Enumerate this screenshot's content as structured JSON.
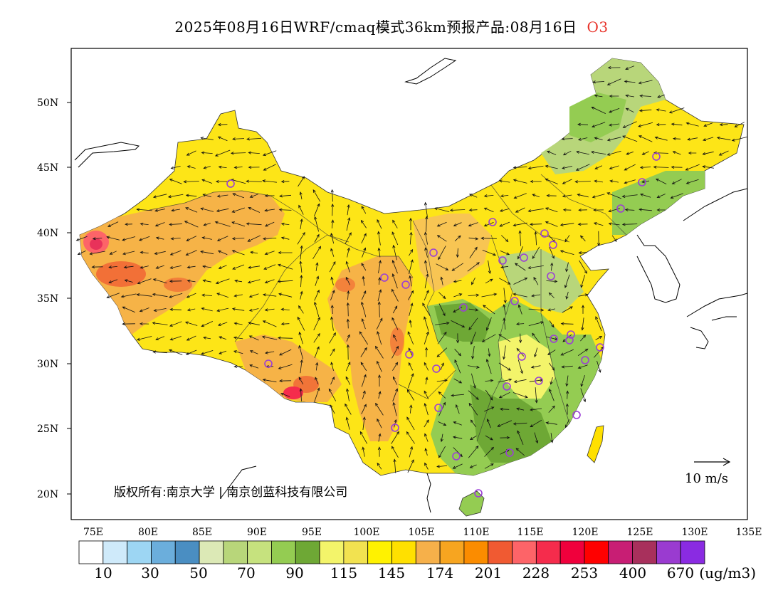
{
  "title": {
    "main": "2025年08月16日WRF/cmaq模式36km预报产品:08月16日",
    "pollutant": "O3"
  },
  "map": {
    "lat_ticks": [
      "20N",
      "25N",
      "30N",
      "35N",
      "40N",
      "45N",
      "50N"
    ],
    "lon_ticks": [
      "75E",
      "80E",
      "85E",
      "90E",
      "95E",
      "100E",
      "105E",
      "110E",
      "115E",
      "120E",
      "125E",
      "130E",
      "135E"
    ],
    "copyright": "版权所有:南京大学 | 南京创蓝科技有限公司",
    "wind_reference": "10 m/s",
    "colors": {
      "dominant_west": "#f6a637",
      "dominant_center": "#ffe600",
      "dominant_east": "#8ac44b",
      "peak": "#e8325a",
      "station_marker": "#9b3fd6"
    }
  },
  "colorbar": {
    "unit": "(ug/m3)",
    "labels": [
      "10",
      "30",
      "50",
      "70",
      "90",
      "115",
      "145",
      "174",
      "201",
      "228",
      "253",
      "400",
      "670"
    ],
    "colors": [
      "#ffffff",
      "#cfeafa",
      "#9dd6f3",
      "#6baedc",
      "#4a8ec2",
      "#dce9b6",
      "#b8d67a",
      "#c6e27e",
      "#94cc52",
      "#6ea835",
      "#f3f46a",
      "#f2e250",
      "#fff200",
      "#ffe000",
      "#f6b04a",
      "#f7a520",
      "#fb8c00",
      "#f05a32",
      "#fd6468",
      "#f52c4c",
      "#f0003c",
      "#ff0000",
      "#c81e74",
      "#a8305c",
      "#9a3bd0",
      "#8a2be2"
    ]
  }
}
